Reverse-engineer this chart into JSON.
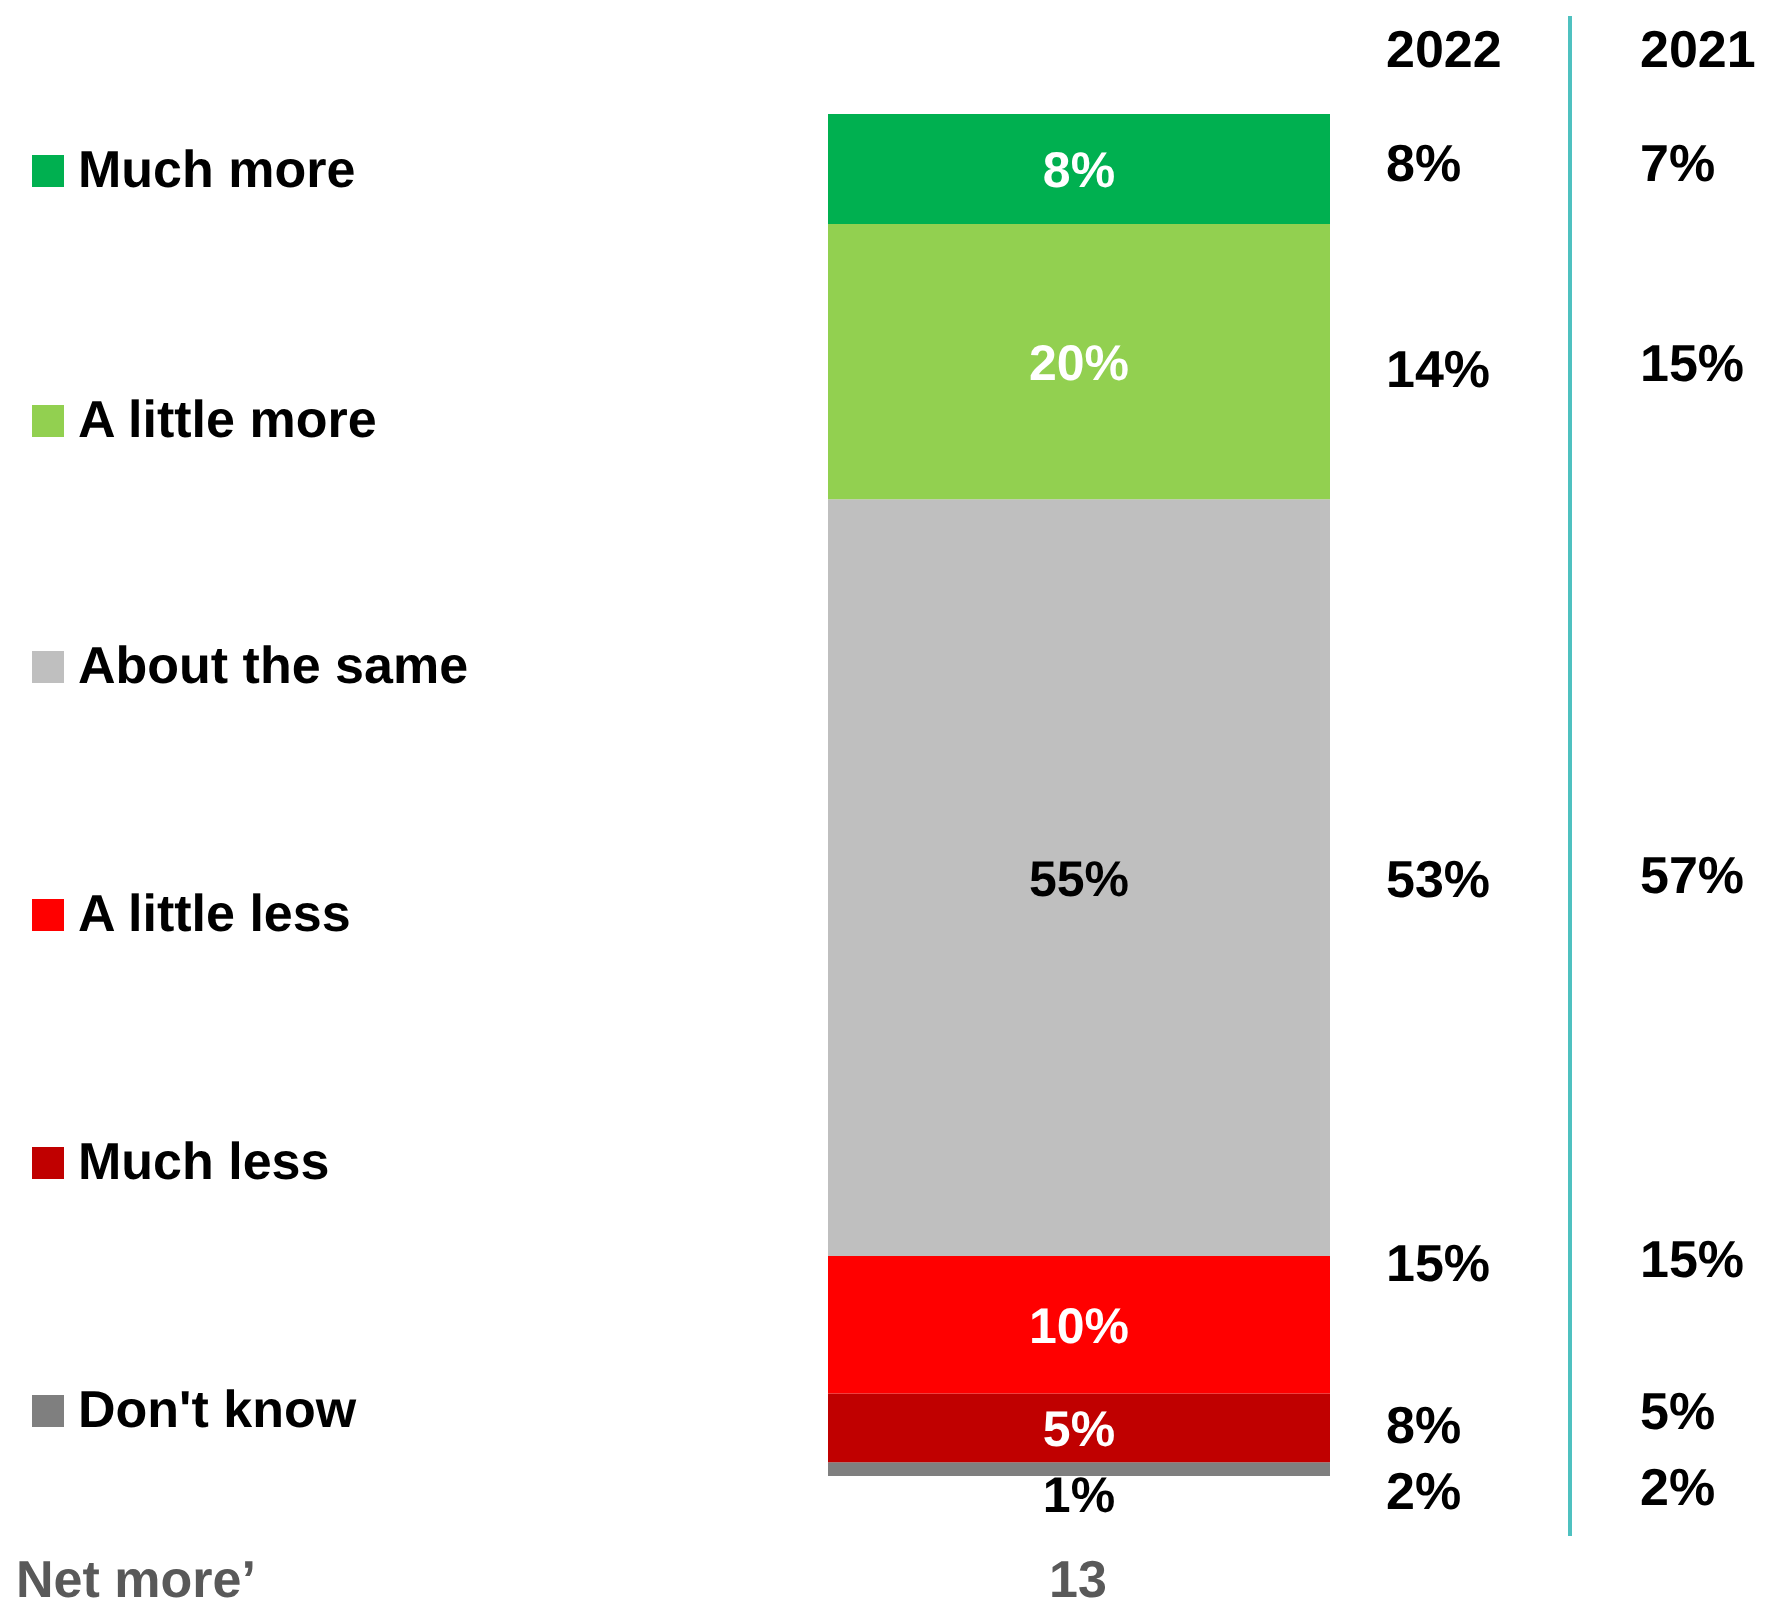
{
  "chart_data": {
    "type": "bar",
    "stacked": true,
    "categories": [
      null
    ],
    "legend": "left",
    "series": [
      {
        "name": "Don't know",
        "color": "#7f7f7f",
        "values": [
          1
        ],
        "value_labels": [
          "1%"
        ]
      },
      {
        "name": "Much less",
        "color": "#c00000",
        "values": [
          5
        ],
        "value_labels": [
          "5%"
        ]
      },
      {
        "name": "A little less",
        "color": "#ff0000",
        "values": [
          10
        ],
        "value_labels": [
          "10%"
        ]
      },
      {
        "name": "About the same",
        "color": "#bfbfbf",
        "values": [
          55
        ],
        "value_labels": [
          "55%"
        ]
      },
      {
        "name": "A little more",
        "color": "#92d050",
        "values": [
          20
        ],
        "value_labels": [
          "20%"
        ]
      },
      {
        "name": "Much more",
        "color": "#00b050",
        "values": [
          8
        ],
        "value_labels": [
          "8%"
        ]
      }
    ],
    "annotations": [
      "2022",
      "8%",
      "14%",
      "53%",
      "15%",
      "8%",
      "2%",
      "2021",
      "7%",
      "15%",
      "57%",
      "15%",
      "5%",
      "2%",
      "Net more’",
      "13"
    ]
  }
}
